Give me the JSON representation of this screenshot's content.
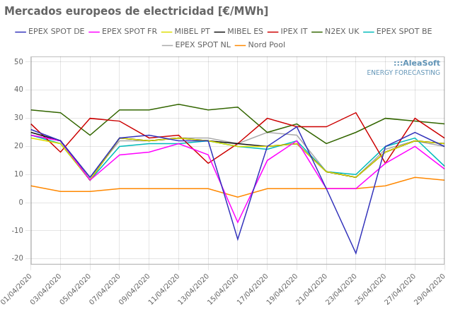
{
  "chart_data": {
    "type": "line",
    "title": "Mercados europeos de electricidad [€/MWh]",
    "categories": [
      "01/04/2020",
      "03/04/2020",
      "05/04/2020",
      "07/04/2020",
      "09/04/2020",
      "11/04/2020",
      "13/04/2020",
      "15/04/2020",
      "17/04/2020",
      "19/04/2020",
      "21/04/2020",
      "23/04/2020",
      "25/04/2020",
      "27/04/2020",
      "29/04/2020"
    ],
    "series": [
      {
        "name": "EPEX SPOT DE",
        "color": "#3333bb",
        "values": [
          26,
          22,
          9,
          23,
          24,
          22,
          22,
          -13,
          20,
          27,
          5,
          -18,
          20,
          25,
          20
        ]
      },
      {
        "name": "EPEX SPOT FR",
        "color": "#ff00ff",
        "values": [
          24,
          22,
          8,
          17,
          18,
          21,
          17,
          -7,
          15,
          22,
          5,
          5,
          14,
          20,
          12
        ]
      },
      {
        "name": "MIBEL PT",
        "color": "#dddd00",
        "values": [
          23,
          21,
          8,
          23,
          22,
          23,
          22,
          20,
          20,
          21,
          11,
          9,
          18,
          22,
          21
        ]
      },
      {
        "name": "MIBEL ES",
        "color": "#111111",
        "values": [
          25,
          22,
          8,
          23,
          22,
          23,
          22,
          21,
          20,
          21,
          11,
          9,
          18,
          22,
          21
        ]
      },
      {
        "name": "IPEX IT",
        "color": "#cc0000",
        "values": [
          28,
          18,
          30,
          29,
          23,
          24,
          14,
          21,
          30,
          27,
          27,
          32,
          14,
          30,
          23
        ]
      },
      {
        "name": "N2EX UK",
        "color": "#336600",
        "values": [
          33,
          32,
          24,
          33,
          33,
          35,
          33,
          34,
          25,
          28,
          21,
          25,
          30,
          29,
          28
        ]
      },
      {
        "name": "EPEX SPOT BE",
        "color": "#00bbbb",
        "values": [
          24,
          21,
          8,
          20,
          21,
          21,
          22,
          20,
          19,
          22,
          11,
          10,
          20,
          23,
          13
        ]
      },
      {
        "name": "EPEX SPOT NL",
        "color": "#aaaaaa",
        "values": [
          24,
          22,
          9,
          22,
          22,
          23,
          23,
          21,
          25,
          24,
          11,
          9,
          19,
          22,
          20
        ]
      },
      {
        "name": "Nord Pool",
        "color": "#ff8800",
        "values": [
          6,
          4,
          4,
          5,
          5,
          5,
          5,
          2,
          5,
          5,
          5,
          5,
          6,
          9,
          8
        ]
      }
    ],
    "ylim": [
      -22,
      52
    ],
    "yticks": [
      -20,
      -10,
      0,
      10,
      20,
      30,
      40,
      50
    ],
    "grid": true,
    "legend": "top",
    "annotations": [
      ":::AleaSoft",
      "ENERGY FORECASTING"
    ]
  }
}
